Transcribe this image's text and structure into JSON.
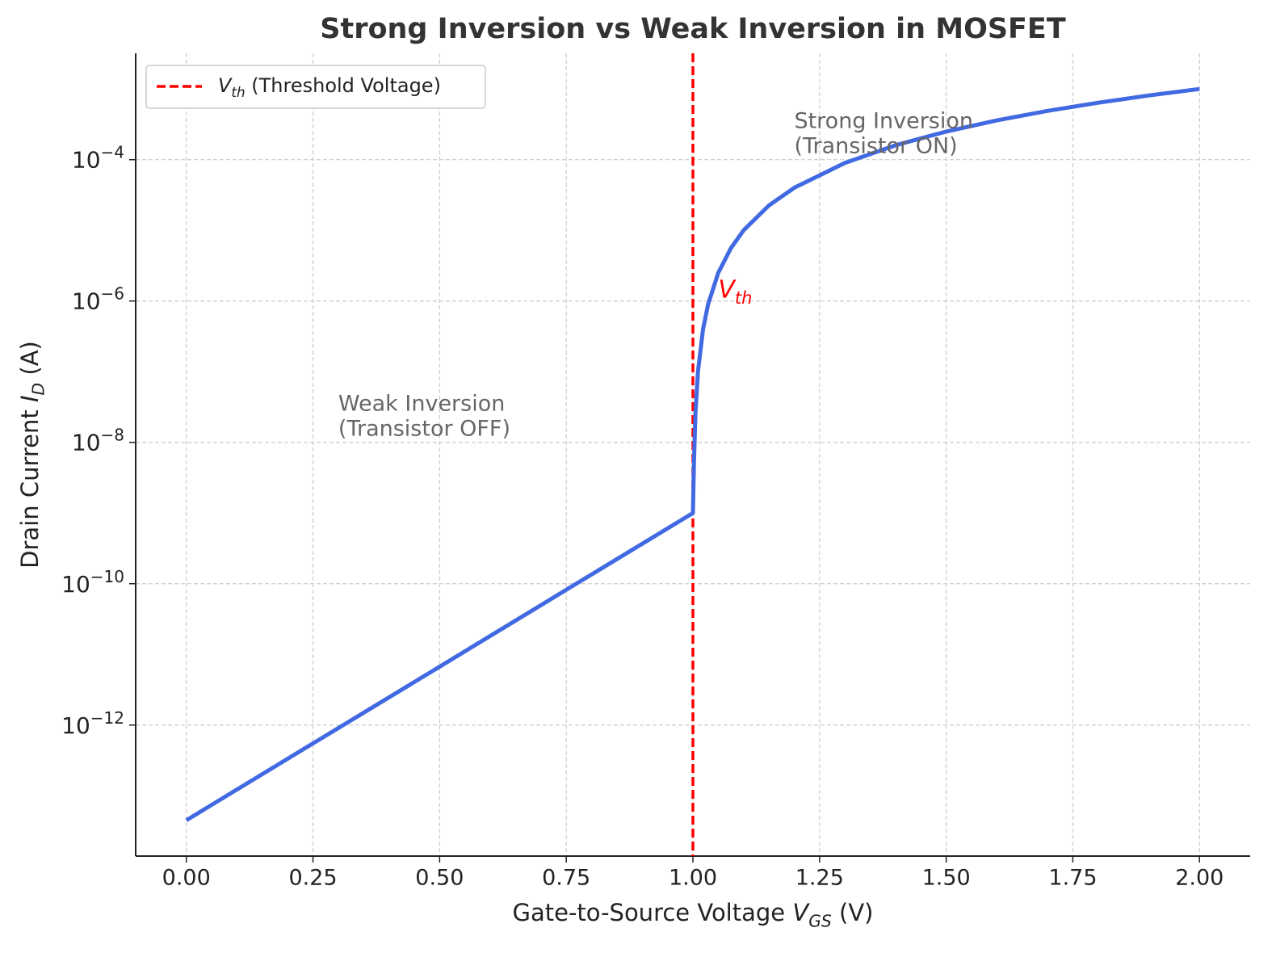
{
  "chart_data": {
    "type": "line",
    "title": "Strong Inversion vs Weak Inversion in MOSFET",
    "xlabel": {
      "text": "Gate-to-Source Voltage  ",
      "symbol": "V",
      "subscript": "GS",
      "unit": " (V)"
    },
    "ylabel": {
      "text": "Drain Current  ",
      "symbol": "I",
      "subscript": "D",
      "unit": " (A)"
    },
    "xlim": [
      -0.1,
      2.1
    ],
    "ylim": [
      1.4e-14,
      0.0032
    ],
    "log_y": true,
    "grid": true,
    "legend": "upper left",
    "xticks": [
      {
        "value": 0,
        "label": "0.00"
      },
      {
        "value": 0.25,
        "label": "0.25"
      },
      {
        "value": 0.5,
        "label": "0.50"
      },
      {
        "value": 0.75,
        "label": "0.75"
      },
      {
        "value": 1,
        "label": "1.00"
      },
      {
        "value": 1.25,
        "label": "1.25"
      },
      {
        "value": 1.5,
        "label": "1.50"
      },
      {
        "value": 1.75,
        "label": "1.75"
      },
      {
        "value": 2,
        "label": "2.00"
      }
    ],
    "yticks": [
      {
        "value": 1e-12,
        "label": "10−12"
      },
      {
        "value": 1e-10,
        "label": "10−10"
      },
      {
        "value": 1e-08,
        "label": "10−8"
      },
      {
        "value": 1e-06,
        "label": "10−6"
      },
      {
        "value": 0.0001,
        "label": "10−4"
      }
    ],
    "series": [
      {
        "color": "#4169e1",
        "x": [
          0,
          0.25,
          0.5,
          0.75,
          1.0,
          1.002,
          1.005,
          1.01,
          1.02,
          1.03,
          1.05,
          1.075,
          1.1,
          1.15,
          1.2,
          1.3,
          1.4,
          1.5,
          1.6,
          1.7,
          1.8,
          1.9,
          2.0
        ],
        "values": [
          4.5e-14,
          5.5e-13,
          6.7e-12,
          8.2e-11,
          1e-09,
          5e-09,
          2.6e-08,
          1.01e-07,
          4e-07,
          9e-07,
          2.5e-06,
          5.6e-06,
          1e-05,
          2.25e-05,
          4e-05,
          9e-05,
          0.00016,
          0.00025,
          0.00036,
          0.00049,
          0.00064,
          0.00081,
          0.001
        ]
      }
    ],
    "threshold": {
      "x": 1.0,
      "color": "#ff0000",
      "legend": {
        "symbol": "V",
        "subscript": "th",
        "text": " (Threshold Voltage)"
      }
    },
    "annotations": [
      {
        "lines": [
          "Strong Inversion",
          "(Transistor ON)"
        ],
        "x": 1.2,
        "y": 0.0001,
        "color": "#666666"
      },
      {
        "lines": [
          "Weak Inversion",
          "(Transistor OFF)"
        ],
        "x": 0.3,
        "y": 1e-08,
        "color": "#666666"
      }
    ],
    "vth_label": {
      "symbol": "V",
      "subscript": "th",
      "x": 1.05,
      "y": 1e-06,
      "color": "#ff0000"
    }
  }
}
